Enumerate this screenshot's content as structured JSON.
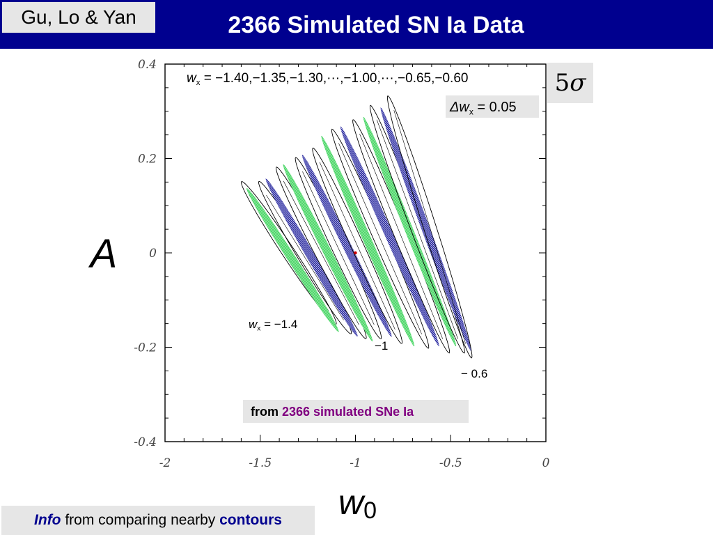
{
  "header": {
    "authors": "Gu, Lo & Yan",
    "title": "2366 Simulated SN Ia Data"
  },
  "sigma_label": {
    "number": "5",
    "symbol": "σ"
  },
  "axis_labels": {
    "y_symbol": "A",
    "x_symbol": "w",
    "x_subscript": "0"
  },
  "footer": {
    "info_word": "Info",
    "middle_text": " from comparing nearby ",
    "contours_word": "contours"
  },
  "colors": {
    "header_bg": "#00008f",
    "label_box_bg": "#e6e6e6",
    "green_band": "#4fd36b",
    "blue_band": "#3a3aa0",
    "contour_line": "#000000",
    "source_text": "#800080",
    "center_point": "#cc0000"
  },
  "chart_data": {
    "type": "contour",
    "title": "",
    "xlabel": "w0",
    "ylabel": "A",
    "xlim": [
      -2,
      0
    ],
    "ylim": [
      -0.4,
      0.4
    ],
    "x_ticks": [
      "-2",
      "-1.5",
      "-1",
      "-0.5",
      "0"
    ],
    "y_ticks": [
      "0.4",
      "0.2",
      "0",
      "-0.2",
      "-0.4"
    ],
    "fiducial_point": {
      "w0": -1.0,
      "A": 0.0
    },
    "wx_range_annotation": {
      "prefix": "w",
      "subscript": "x",
      "text": " = −1.40,−1.35,−1.30,···,−1.00,···,−0.65,−0.60"
    },
    "delta_annotation": {
      "prefix": "Δw",
      "subscript": "x",
      "text": " = 0.05"
    },
    "curve_labels": [
      {
        "prefix": "w",
        "subscript": "x",
        "text": " = −1.4",
        "wx": -1.4
      },
      {
        "prefix": "",
        "subscript": "",
        "text": "−1",
        "wx": -1.0
      },
      {
        "prefix": "",
        "subscript": "",
        "text": "− 0.6",
        "wx": -0.6
      }
    ],
    "source_note": {
      "bold": "from",
      "highlight": "2366 simulated SNe Ia"
    },
    "bands": [
      {
        "wx": -1.4,
        "style": "outline",
        "top": [
          -1.58,
          0.14
        ],
        "bottom": [
          -1.12,
          -0.14
        ]
      },
      {
        "wx": -1.35,
        "style": "green",
        "top": [
          -1.56,
          0.13
        ],
        "bottom": [
          -1.1,
          -0.16
        ]
      },
      {
        "wx": -1.3,
        "style": "outline",
        "top": [
          -1.49,
          0.14
        ],
        "bottom": [
          -1.04,
          -0.16
        ]
      },
      {
        "wx": -1.25,
        "style": "blue",
        "top": [
          -1.46,
          0.15
        ],
        "bottom": [
          -1.0,
          -0.17
        ]
      },
      {
        "wx": -1.2,
        "style": "outline",
        "top": [
          -1.4,
          0.17
        ],
        "bottom": [
          -0.96,
          -0.17
        ]
      },
      {
        "wx": -1.15,
        "style": "green",
        "top": [
          -1.37,
          0.18
        ],
        "bottom": [
          -0.92,
          -0.18
        ]
      },
      {
        "wx": -1.1,
        "style": "outline",
        "top": [
          -1.3,
          0.19
        ],
        "bottom": [
          -0.88,
          -0.17
        ]
      },
      {
        "wx": -1.05,
        "style": "blue",
        "top": [
          -1.27,
          0.2
        ],
        "bottom": [
          -0.82,
          -0.17
        ]
      },
      {
        "wx": -1.0,
        "style": "outline",
        "top": [
          -1.21,
          0.21
        ],
        "bottom": [
          -0.77,
          -0.18
        ]
      },
      {
        "wx": -0.95,
        "style": "green",
        "top": [
          -1.17,
          0.24
        ],
        "bottom": [
          -0.7,
          -0.19
        ]
      },
      {
        "wx": -0.9,
        "style": "outline",
        "top": [
          -1.11,
          0.25
        ],
        "bottom": [
          -0.63,
          -0.19
        ]
      },
      {
        "wx": -0.85,
        "style": "blue",
        "top": [
          -1.07,
          0.26
        ],
        "bottom": [
          -0.57,
          -0.19
        ]
      },
      {
        "wx": -0.8,
        "style": "outline",
        "top": [
          -1.0,
          0.27
        ],
        "bottom": [
          -0.52,
          -0.2
        ]
      },
      {
        "wx": -0.75,
        "style": "green",
        "top": [
          -0.95,
          0.28
        ],
        "bottom": [
          -0.48,
          -0.19
        ]
      },
      {
        "wx": -0.7,
        "style": "outline",
        "top": [
          -0.91,
          0.3
        ],
        "bottom": [
          -0.44,
          -0.2
        ]
      },
      {
        "wx": -0.65,
        "style": "blue",
        "top": [
          -0.86,
          0.3
        ],
        "bottom": [
          -0.4,
          -0.2
        ]
      },
      {
        "wx": -0.6,
        "style": "outline",
        "top": [
          -0.82,
          0.32
        ],
        "bottom": [
          -0.4,
          -0.21
        ]
      }
    ]
  }
}
